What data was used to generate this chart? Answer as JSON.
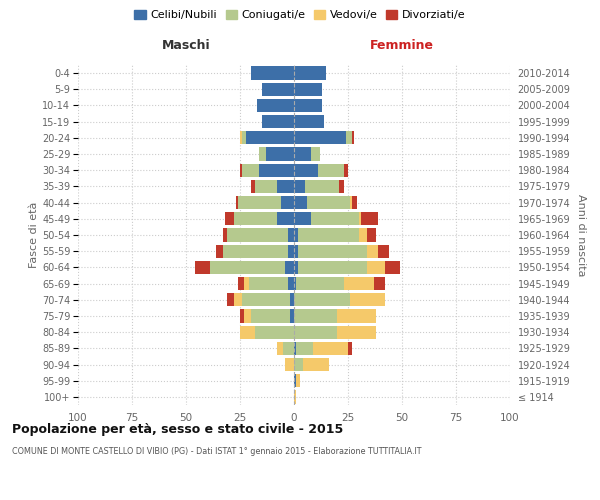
{
  "age_groups": [
    "100+",
    "95-99",
    "90-94",
    "85-89",
    "80-84",
    "75-79",
    "70-74",
    "65-69",
    "60-64",
    "55-59",
    "50-54",
    "45-49",
    "40-44",
    "35-39",
    "30-34",
    "25-29",
    "20-24",
    "15-19",
    "10-14",
    "5-9",
    "0-4"
  ],
  "birth_years": [
    "≤ 1914",
    "1915-1919",
    "1920-1924",
    "1925-1929",
    "1930-1934",
    "1935-1939",
    "1940-1944",
    "1945-1949",
    "1950-1954",
    "1955-1959",
    "1960-1964",
    "1965-1969",
    "1970-1974",
    "1975-1979",
    "1980-1984",
    "1985-1989",
    "1990-1994",
    "1995-1999",
    "2000-2004",
    "2005-2009",
    "2010-2014"
  ],
  "colors": {
    "celibi": "#3d6fa8",
    "coniugati": "#b5c98e",
    "vedovi": "#f5c96a",
    "divorziati": "#c0392b"
  },
  "males": {
    "celibi": [
      0,
      0,
      0,
      0,
      0,
      2,
      2,
      3,
      4,
      3,
      3,
      8,
      6,
      8,
      16,
      13,
      22,
      15,
      17,
      15,
      20
    ],
    "coniugati": [
      0,
      0,
      0,
      5,
      18,
      18,
      22,
      18,
      35,
      30,
      28,
      20,
      20,
      10,
      8,
      3,
      2,
      0,
      0,
      0,
      0
    ],
    "vedovi": [
      0,
      0,
      4,
      3,
      7,
      3,
      4,
      2,
      0,
      0,
      0,
      0,
      0,
      0,
      0,
      0,
      1,
      0,
      0,
      0,
      0
    ],
    "divorziati": [
      0,
      0,
      0,
      0,
      0,
      2,
      3,
      3,
      7,
      3,
      2,
      4,
      1,
      2,
      1,
      0,
      0,
      0,
      0,
      0,
      0
    ]
  },
  "females": {
    "celibi": [
      0,
      1,
      0,
      1,
      0,
      0,
      0,
      1,
      2,
      2,
      2,
      8,
      6,
      5,
      11,
      8,
      24,
      14,
      13,
      13,
      15
    ],
    "coniugati": [
      0,
      0,
      4,
      8,
      20,
      20,
      26,
      22,
      32,
      32,
      28,
      22,
      20,
      16,
      12,
      4,
      3,
      0,
      0,
      0,
      0
    ],
    "vedovi": [
      1,
      2,
      12,
      16,
      18,
      18,
      16,
      14,
      8,
      5,
      4,
      1,
      1,
      0,
      0,
      0,
      0,
      0,
      0,
      0,
      0
    ],
    "divorziati": [
      0,
      0,
      0,
      2,
      0,
      0,
      0,
      5,
      7,
      5,
      4,
      8,
      2,
      2,
      2,
      0,
      1,
      0,
      0,
      0,
      0
    ]
  },
  "title": "Popolazione per età, sesso e stato civile - 2015",
  "subtitle": "COMUNE DI MONTE CASTELLO DI VIBIO (PG) - Dati ISTAT 1° gennaio 2015 - Elaborazione TUTTITALIA.IT",
  "xlabel_left": "Maschi",
  "xlabel_right": "Femmine",
  "ylabel_left": "Fasce di età",
  "ylabel_right": "Anni di nascita",
  "xlim": 100,
  "legend_labels": [
    "Celibi/Nubili",
    "Coniugati/e",
    "Vedovi/e",
    "Divorziati/e"
  ],
  "bg_color": "#ffffff",
  "grid_color": "#cccccc"
}
